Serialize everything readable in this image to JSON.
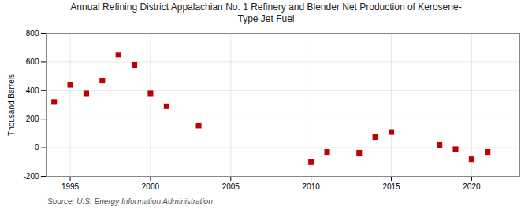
{
  "chart_data": {
    "type": "scatter",
    "title": "Annual Refining District Appalachian No. 1 Refinery and Blender Net Production of Kerosene-\nType Jet Fuel",
    "ylabel": "Thousand Barrels",
    "source": "Source: U.S. Energy Information Administration",
    "x": [
      1994,
      1995,
      1996,
      1997,
      1998,
      1999,
      2000,
      2001,
      2003,
      2010,
      2011,
      2013,
      2014,
      2015,
      2018,
      2019,
      2020,
      2021
    ],
    "values": [
      320,
      440,
      380,
      470,
      650,
      580,
      380,
      290,
      155,
      -100,
      -30,
      -35,
      75,
      110,
      20,
      -10,
      -80,
      -30
    ],
    "color": "#c00000",
    "marker": "square",
    "xlim": [
      1993.5,
      2023
    ],
    "ylim": [
      -200,
      800
    ],
    "xticks": [
      1995,
      2000,
      2005,
      2010,
      2015,
      2020
    ],
    "yticks": [
      -200,
      0,
      200,
      400,
      600,
      800
    ],
    "grid": true
  }
}
